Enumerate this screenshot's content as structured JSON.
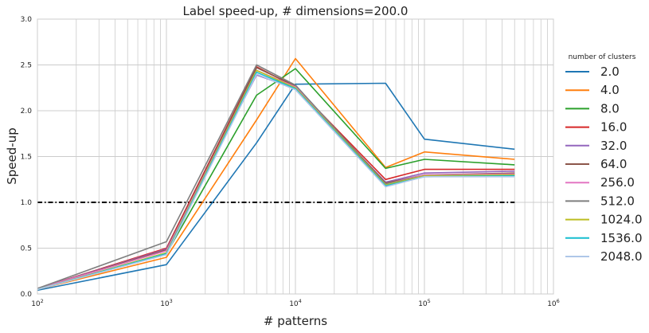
{
  "chart_data": {
    "type": "line",
    "title": "Label speed-up, # dimensions=200.0",
    "xlabel": "# patterns",
    "ylabel": "Speed-up",
    "xscale": "log",
    "xlim": [
      100,
      1000000
    ],
    "ylim": [
      0,
      3.0
    ],
    "x_ticks": [
      {
        "value": 100,
        "base": "10",
        "exp": "2"
      },
      {
        "value": 1000,
        "base": "10",
        "exp": "3"
      },
      {
        "value": 10000,
        "base": "10",
        "exp": "4"
      },
      {
        "value": 100000,
        "base": "10",
        "exp": "5"
      },
      {
        "value": 1000000,
        "base": "10",
        "exp": "6"
      }
    ],
    "y_ticks": [
      {
        "value": 0,
        "label": "0.0"
      },
      {
        "value": 0.5,
        "label": "0.5"
      },
      {
        "value": 1.0,
        "label": "1.0"
      },
      {
        "value": 1.5,
        "label": "1.5"
      },
      {
        "value": 2.0,
        "label": "2.0"
      },
      {
        "value": 2.5,
        "label": "2.5"
      },
      {
        "value": 3.0,
        "label": "3.0"
      }
    ],
    "grid": true,
    "legend_title": "number of clusters",
    "legend_position": "right, outside plot",
    "reference_line": {
      "y": 1.0,
      "style": "dash-dot",
      "color": "#000000",
      "x_range": [
        100,
        500000
      ]
    },
    "x": [
      100,
      1000,
      5000,
      10000,
      50000,
      100000,
      500000
    ],
    "series": [
      {
        "name": "2.0",
        "color": "#1f77b4",
        "values": [
          0.04,
          0.32,
          1.65,
          2.29,
          2.3,
          1.69,
          1.58
        ]
      },
      {
        "name": "4.0",
        "color": "#ff7f0e",
        "values": [
          0.05,
          0.4,
          1.9,
          2.57,
          1.38,
          1.55,
          1.47
        ]
      },
      {
        "name": "8.0",
        "color": "#2ca02c",
        "values": [
          0.05,
          0.44,
          2.17,
          2.46,
          1.37,
          1.47,
          1.41
        ]
      },
      {
        "name": "16.0",
        "color": "#d62728",
        "values": [
          0.06,
          0.5,
          2.48,
          2.26,
          1.25,
          1.36,
          1.36
        ]
      },
      {
        "name": "32.0",
        "color": "#9467bd",
        "values": [
          0.06,
          0.49,
          2.39,
          2.24,
          1.22,
          1.32,
          1.34
        ]
      },
      {
        "name": "64.0",
        "color": "#8c564b",
        "values": [
          0.06,
          0.48,
          2.47,
          2.27,
          1.21,
          1.3,
          1.32
        ]
      },
      {
        "name": "256.0",
        "color": "#e377c2",
        "values": [
          0.06,
          0.47,
          2.44,
          2.26,
          1.2,
          1.3,
          1.31
        ]
      },
      {
        "name": "512.0",
        "color": "#7f7f7f",
        "values": [
          0.06,
          0.57,
          2.5,
          2.28,
          1.2,
          1.29,
          1.3
        ]
      },
      {
        "name": "1024.0",
        "color": "#bcbd22",
        "values": [
          0.05,
          0.45,
          2.44,
          2.25,
          1.19,
          1.29,
          1.3
        ]
      },
      {
        "name": "1536.0",
        "color": "#17becf",
        "values": [
          0.05,
          0.44,
          2.42,
          2.24,
          1.18,
          1.28,
          1.29
        ]
      },
      {
        "name": "2048.0",
        "color": "#aec7e8",
        "values": [
          0.05,
          0.43,
          2.4,
          2.23,
          1.17,
          1.28,
          1.28
        ]
      }
    ]
  }
}
